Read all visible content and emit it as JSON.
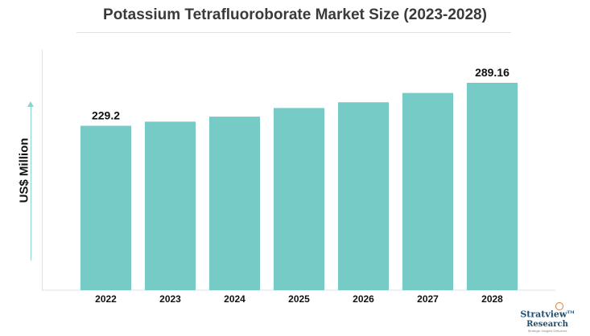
{
  "chart_data": {
    "type": "bar",
    "title": "Potassium Tetrafluoroborate Market Size (2023-2028)",
    "ylabel": "US$ Million",
    "xlabel": "",
    "categories": [
      "2022",
      "2023",
      "2024",
      "2025",
      "2026",
      "2027",
      "2028"
    ],
    "values": [
      229.2,
      235.0,
      242.0,
      254.0,
      262.0,
      275.0,
      289.16
    ],
    "data_labels": [
      "229.2",
      "",
      "",
      "",
      "",
      "",
      "289.16"
    ],
    "ylim": [
      0,
      320
    ],
    "bar_color": "#77cbc6",
    "grid": false,
    "legend": "none"
  },
  "logo": {
    "main": "Stratview",
    "tm": "TM",
    "sub": "Research",
    "tagline": "Strategic Insights Delivered"
  }
}
